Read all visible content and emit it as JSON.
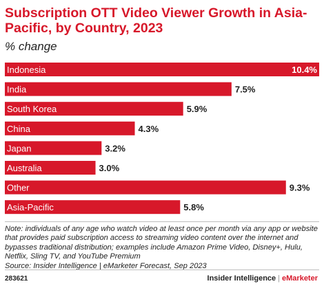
{
  "title": "Subscription OTT Video Viewer Growth in Asia-Pacific, by Country, 2023",
  "subtitle": "% change",
  "chart_data": {
    "type": "bar",
    "orientation": "horizontal",
    "title": "Subscription OTT Video Viewer Growth in Asia-Pacific, by Country, 2023",
    "subtitle": "% change",
    "categories": [
      "Indonesia",
      "India",
      "South Korea",
      "China",
      "Japan",
      "Australia",
      "Other",
      "Asia-Pacific"
    ],
    "values": [
      10.4,
      7.5,
      5.9,
      4.3,
      3.2,
      3.0,
      9.3,
      5.8
    ],
    "value_labels": [
      "10.4%",
      "7.5%",
      "5.9%",
      "4.3%",
      "3.2%",
      "3.0%",
      "9.3%",
      "5.8%"
    ],
    "xlim": [
      0,
      10.4
    ],
    "grid": false,
    "bar_color": "#d7182a",
    "label_color": "#ffffff"
  },
  "note": "Note: individuals of any age who watch video at least once per month via any app or website that provides paid subscription access to streaming video content over the internet and bypasses traditional distribution; examples include Amazon Prime Video, Disney+, Hulu, Netflix, Sling TV, and YouTube Premium",
  "source": "Source: Insider Intelligence | eMarketer Forecast, Sep 2023",
  "footer": {
    "code": "283621",
    "brand_left": "Insider Intelligence",
    "brand_sep": "|",
    "brand_right": "eMarketer"
  }
}
